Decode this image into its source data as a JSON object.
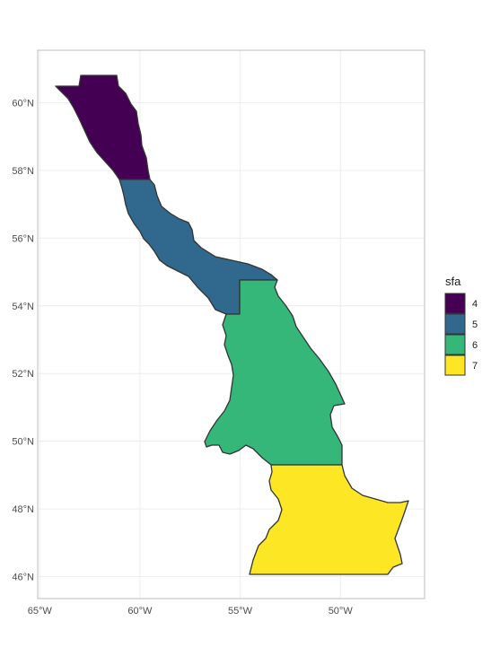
{
  "chart_data": {
    "type": "map",
    "legend": {
      "title": "sfa",
      "placement": "right",
      "items": [
        {
          "label": "4",
          "color": "#440154"
        },
        {
          "label": "5",
          "color": "#31688E"
        },
        {
          "label": "6",
          "color": "#35B779"
        },
        {
          "label": "7",
          "color": "#FDE725"
        }
      ]
    },
    "x_ticks": [
      {
        "value": -65,
        "label": "65°W"
      },
      {
        "value": -60,
        "label": "60°W"
      },
      {
        "value": -55,
        "label": "55°W"
      },
      {
        "value": -50,
        "label": "50°W"
      }
    ],
    "y_ticks": [
      {
        "value": 46,
        "label": "46°N"
      },
      {
        "value": 48,
        "label": "48°N"
      },
      {
        "value": 50,
        "label": "50°N"
      },
      {
        "value": 52,
        "label": "52°N"
      },
      {
        "value": 54,
        "label": "54°N"
      },
      {
        "value": 56,
        "label": "56°N"
      },
      {
        "value": 58,
        "label": "58°N"
      },
      {
        "value": 60,
        "label": "60°N"
      }
    ],
    "xlim": [
      -65.1,
      -45.8
    ],
    "ylim": [
      45.35,
      61.55
    ],
    "grid": true,
    "regions": [
      {
        "sfa": "4",
        "color": "#440154"
      },
      {
        "sfa": "5",
        "color": "#31688E"
      },
      {
        "sfa": "6",
        "color": "#35B779"
      },
      {
        "sfa": "7",
        "color": "#FDE725"
      }
    ]
  }
}
